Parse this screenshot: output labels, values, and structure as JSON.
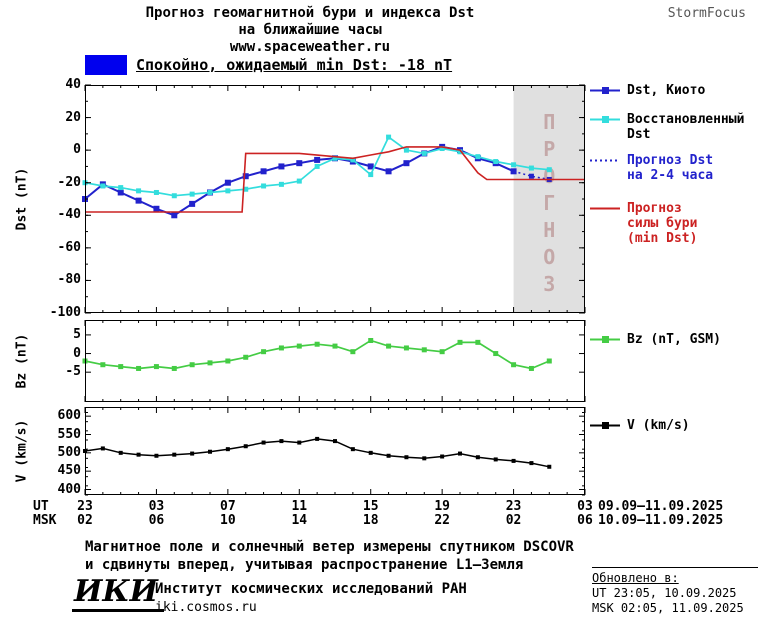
{
  "header": {
    "title_line1": "Прогноз геомагнитной бури и индекса Dst",
    "title_line2": "на ближайшие часы",
    "title_line3": "www.spaceweather.ru",
    "brand": "StormFocus"
  },
  "status_banner": {
    "label": "Спокойно, ожидаемый min Dst: -18 nT",
    "color": "#0000ee"
  },
  "xaxis": {
    "ut_label": "UT",
    "msk_label": "MSK",
    "tick_positions": [
      0,
      4,
      8,
      12,
      16,
      20,
      24,
      28
    ],
    "ut_ticks": [
      "23",
      "03",
      "07",
      "11",
      "15",
      "19",
      "23",
      "03"
    ],
    "msk_ticks": [
      "02",
      "06",
      "10",
      "14",
      "18",
      "22",
      "02",
      "06"
    ],
    "ut_dates": "09.09–11.09.2025",
    "msk_dates": "10.09–11.09.2025"
  },
  "chart_data": [
    {
      "type": "line",
      "panel": "dst",
      "ylabel": "Dst (nT)",
      "ylim": [
        -100,
        40
      ],
      "yticks": [
        40,
        20,
        0,
        -20,
        -40,
        -60,
        -80,
        -100
      ],
      "yminor": 10,
      "xlim": [
        0,
        28
      ],
      "forecast_region": [
        24,
        28
      ],
      "forecast_label": "ПРОГНОЗ",
      "forecast_fill": "#e0e0e0",
      "forecast_color": "#c4a8a8",
      "series": [
        {
          "id": "dst-kyoto",
          "name": "Dst, Киото",
          "color": "#2222cc",
          "marker": true,
          "marker_size": 6,
          "lw": 2,
          "x": [
            0,
            1,
            2,
            3,
            4,
            5,
            6,
            7,
            8,
            9,
            10,
            11,
            12,
            13,
            14,
            15,
            16,
            17,
            18,
            19,
            20,
            21,
            22,
            23,
            24
          ],
          "y": [
            -30,
            -21,
            -26,
            -31,
            -36,
            -40,
            -33,
            -26,
            -20,
            -16,
            -13,
            -10,
            -8,
            -6,
            -5,
            -7,
            -10,
            -13,
            -8,
            -2,
            2,
            0,
            -5,
            -8,
            -13
          ]
        },
        {
          "id": "dst-restored",
          "name": "Восстановленный Dst",
          "color": "#33dddd",
          "marker": true,
          "marker_size": 5,
          "lw": 1.7,
          "x": [
            0,
            1,
            2,
            3,
            4,
            5,
            6,
            7,
            8,
            9,
            10,
            11,
            12,
            13,
            14,
            15,
            16,
            17,
            18,
            19,
            20,
            21,
            22,
            23,
            24,
            25,
            26
          ],
          "y": [
            -20,
            -22,
            -23,
            -25,
            -26,
            -28,
            -27,
            -26,
            -25,
            -24,
            -22,
            -21,
            -19,
            -10,
            -5,
            -6,
            -15,
            8,
            0,
            -2,
            1,
            -1,
            -4,
            -7,
            -9,
            -11,
            -12
          ]
        },
        {
          "id": "dst-forecast",
          "name": "Прогноз Dst на 2-4 часа",
          "color": "#2222cc",
          "dotted": true,
          "marker": true,
          "marker_size": 5,
          "lw": 1.5,
          "x": [
            24,
            25,
            26
          ],
          "y": [
            -13,
            -16,
            -18
          ]
        },
        {
          "id": "storm-forecast",
          "name": "Прогноз силы бури (min Dst)",
          "color": "#cc2222",
          "marker": false,
          "lw": 1.6,
          "x": [
            0,
            8.8,
            9,
            12,
            14,
            15,
            16,
            17,
            18,
            20,
            21,
            22,
            22.5,
            28
          ],
          "y": [
            -38,
            -38,
            -2,
            -2,
            -4,
            -5,
            -3,
            -1,
            2,
            2,
            0,
            -14,
            -18,
            -18
          ]
        }
      ]
    },
    {
      "type": "line",
      "panel": "bz",
      "ylabel": "Bz (nT)",
      "ylim": [
        -13,
        9
      ],
      "yticks": [
        5,
        0,
        -5
      ],
      "xlim": [
        0,
        28
      ],
      "series": [
        {
          "id": "bz",
          "name": "Bz (nT, GSM)",
          "color": "#44cc44",
          "marker": true,
          "marker_size": 5,
          "lw": 1.7,
          "x": [
            0,
            1,
            2,
            3,
            4,
            5,
            6,
            7,
            8,
            9,
            10,
            11,
            12,
            13,
            14,
            15,
            16,
            17,
            18,
            19,
            20,
            21,
            22,
            23,
            24,
            25,
            26
          ],
          "y": [
            -2,
            -3,
            -3.5,
            -4,
            -3.5,
            -4,
            -3,
            -2.5,
            -2,
            -1,
            0.5,
            1.5,
            2,
            2.5,
            2,
            0.5,
            3.5,
            2,
            1.5,
            1,
            0.5,
            3,
            3,
            0,
            -3,
            -4,
            -2
          ]
        }
      ]
    },
    {
      "type": "line",
      "panel": "v",
      "ylabel": "V (km/s)",
      "ylim": [
        385,
        625
      ],
      "yticks": [
        600,
        550,
        500,
        450,
        400
      ],
      "yminor": 25,
      "xlim": [
        0,
        28
      ],
      "series": [
        {
          "id": "v",
          "name": "V (km/s)",
          "color": "#000000",
          "marker": true,
          "marker_size": 4,
          "lw": 1.5,
          "x": [
            0,
            1,
            2,
            3,
            4,
            5,
            6,
            7,
            8,
            9,
            10,
            11,
            12,
            13,
            14,
            15,
            16,
            17,
            18,
            19,
            20,
            21,
            22,
            23,
            24,
            25,
            26
          ],
          "y": [
            505,
            512,
            500,
            495,
            492,
            495,
            498,
            503,
            510,
            518,
            528,
            532,
            528,
            538,
            532,
            510,
            500,
            492,
            488,
            485,
            490,
            498,
            488,
            482,
            478,
            472,
            462
          ]
        }
      ]
    }
  ],
  "legend": {
    "items": [
      {
        "id": "dst-kyoto",
        "label": "Dst, Киото",
        "color": "#2222cc",
        "style": "solid",
        "marker": true,
        "label_color": "#000000"
      },
      {
        "id": "dst-restored",
        "label": "Восстановленный\nDst",
        "color": "#33dddd",
        "style": "solid",
        "marker": true,
        "label_color": "#000000"
      },
      {
        "id": "dst-forecast",
        "label": "Прогноз Dst\nна 2-4 часа",
        "color": "#2222cc",
        "style": "dotted",
        "marker": false,
        "label_color": "#2222cc"
      },
      {
        "id": "storm-forecast",
        "label": "Прогноз\nсилы бури\n(min Dst)",
        "color": "#cc2222",
        "style": "solid",
        "marker": false,
        "label_color": "#cc2222"
      },
      {
        "id": "bz",
        "label": "Bz (nT, GSM)",
        "color": "#44cc44",
        "style": "solid",
        "marker": true,
        "label_color": "#000000"
      },
      {
        "id": "v",
        "label": "V (km/s)",
        "color": "#000000",
        "style": "solid",
        "marker": true,
        "label_color": "#000000"
      }
    ]
  },
  "footnote": {
    "line1": "Магнитное поле и солнечный ветер измерены спутником DSCOVR",
    "line2": "и сдвинуты вперед, учитывая распространение L1–Земля"
  },
  "org": {
    "logo": "ИКИ",
    "name": "Институт космических исследований РАН",
    "url": "iki.cosmos.ru"
  },
  "updated": {
    "heading": "Обновлено в:",
    "ut": "UT  23:05, 10.09.2025",
    "msk": "MSK 02:05, 11.09.2025"
  }
}
